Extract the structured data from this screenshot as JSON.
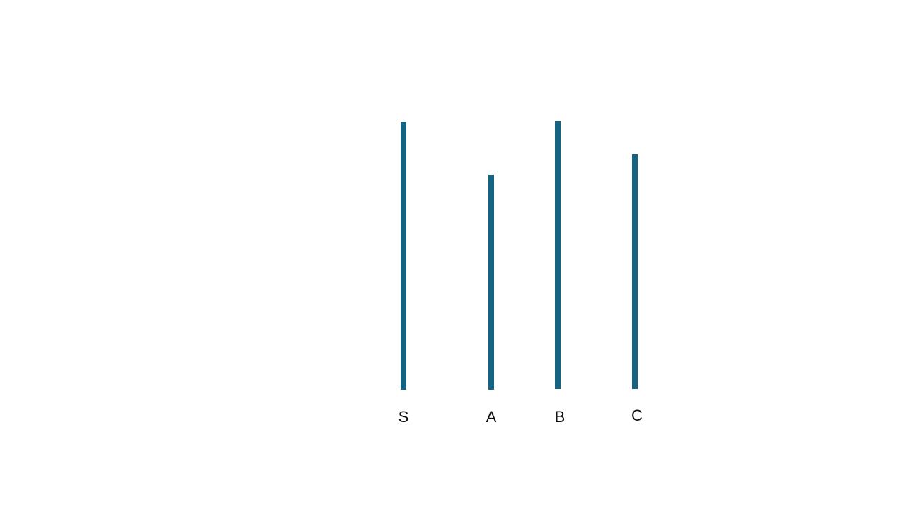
{
  "colors": {
    "background": "#ffffff",
    "bar": "#166482",
    "label": "#111111"
  },
  "bars": [
    {
      "label": "S"
    },
    {
      "label": "A"
    },
    {
      "label": "B"
    },
    {
      "label": "C"
    }
  ]
}
